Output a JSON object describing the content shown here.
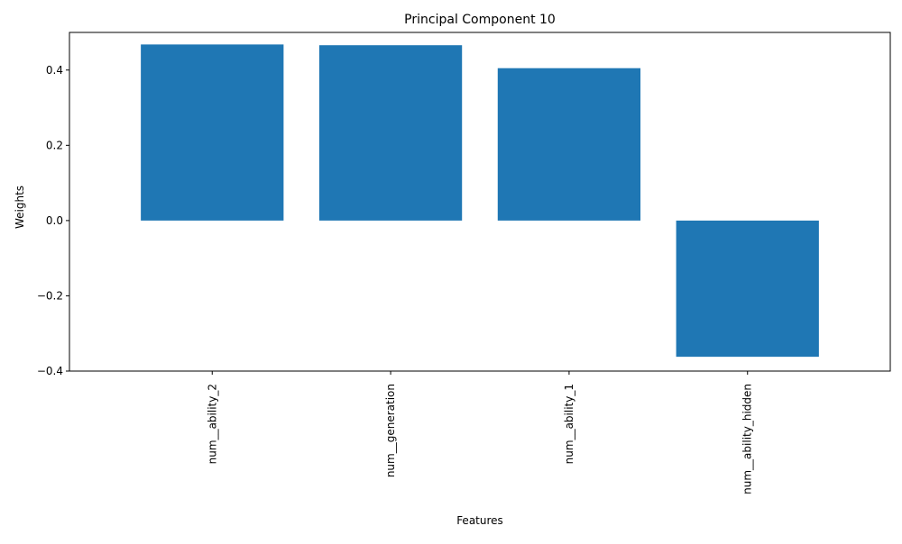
{
  "chart_data": {
    "type": "bar",
    "title": "Principal Component 10",
    "xlabel": "Features",
    "ylabel": "Weights",
    "categories": [
      "num__ability_2",
      "num__generation",
      "num__ability_1",
      "num__ability_hidden"
    ],
    "values": [
      0.468,
      0.466,
      0.405,
      -0.362
    ],
    "ylim": [
      -0.4,
      0.5
    ],
    "yticks": [
      -0.4,
      -0.2,
      0.0,
      0.2,
      0.4
    ],
    "ytick_labels": [
      "−0.4",
      "−0.2",
      "0.0",
      "0.2",
      "0.4"
    ],
    "bar_color": "#1f77b4",
    "grid": false,
    "xtick_rotation": "vertical"
  }
}
